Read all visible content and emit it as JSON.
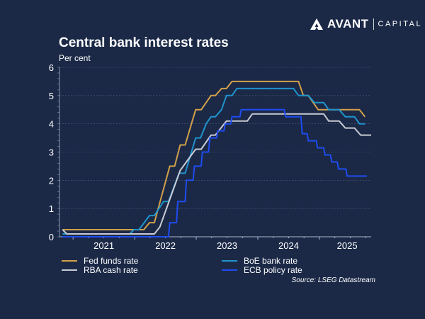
{
  "logo": {
    "brand": "AVANT",
    "sub": "CAPITAL"
  },
  "source": "Source: LSEG Datastream",
  "chart_data": {
    "type": "line",
    "title": "Central bank interest rates",
    "ylabel": "Per cent",
    "xlabel": "",
    "ylim": [
      0,
      6
    ],
    "xlim": [
      2020.78,
      2025.84
    ],
    "yticks": [
      "0",
      "1",
      "2",
      "3",
      "4",
      "5",
      "6"
    ],
    "xticks": [
      {
        "label": "2021",
        "at": 2021.5
      },
      {
        "label": "2022",
        "at": 2022.5
      },
      {
        "label": "2023",
        "at": 2023.5
      },
      {
        "label": "2024",
        "at": 2024.5
      },
      {
        "label": "2025",
        "at": 2025.45
      }
    ],
    "year_boundaries": [
      2021,
      2022,
      2023,
      2024,
      2025
    ],
    "grid": true,
    "legend_position": "bottom",
    "series": [
      {
        "name": "Fed funds rate",
        "color": "#d3a04a",
        "points": [
          [
            2020.83,
            0.25
          ],
          [
            2022.15,
            0.25
          ],
          [
            2022.24,
            0.5
          ],
          [
            2022.32,
            0.5
          ],
          [
            2022.57,
            2.5
          ],
          [
            2022.65,
            2.5
          ],
          [
            2022.74,
            3.25
          ],
          [
            2022.82,
            3.25
          ],
          [
            2022.99,
            4.5
          ],
          [
            2023.08,
            4.5
          ],
          [
            2023.24,
            5.0
          ],
          [
            2023.31,
            5.0
          ],
          [
            2023.41,
            5.25
          ],
          [
            2023.49,
            5.25
          ],
          [
            2023.58,
            5.5
          ],
          [
            2024.66,
            5.5
          ],
          [
            2024.74,
            5.0
          ],
          [
            2024.82,
            5.0
          ],
          [
            2024.98,
            4.5
          ],
          [
            2025.15,
            4.5
          ],
          [
            2025.65,
            4.5
          ],
          [
            2025.74,
            4.25
          ]
        ]
      },
      {
        "name": "BoE bank rate",
        "color": "#1f93cc",
        "points": [
          [
            2020.83,
            0.1
          ],
          [
            2021.92,
            0.1
          ],
          [
            2021.99,
            0.25
          ],
          [
            2022.07,
            0.25
          ],
          [
            2022.24,
            0.75
          ],
          [
            2022.32,
            0.75
          ],
          [
            2022.47,
            1.25
          ],
          [
            2022.55,
            1.25
          ],
          [
            2022.72,
            2.25
          ],
          [
            2022.82,
            2.25
          ],
          [
            2022.99,
            3.5
          ],
          [
            2023.07,
            3.5
          ],
          [
            2023.16,
            4.0
          ],
          [
            2023.24,
            4.25
          ],
          [
            2023.31,
            4.25
          ],
          [
            2023.41,
            4.5
          ],
          [
            2023.49,
            5.0
          ],
          [
            2023.58,
            5.0
          ],
          [
            2023.66,
            5.25
          ],
          [
            2024.58,
            5.25
          ],
          [
            2024.66,
            5.0
          ],
          [
            2024.82,
            5.0
          ],
          [
            2024.92,
            4.75
          ],
          [
            2025.07,
            4.75
          ],
          [
            2025.15,
            4.5
          ],
          [
            2025.32,
            4.5
          ],
          [
            2025.42,
            4.25
          ],
          [
            2025.57,
            4.25
          ],
          [
            2025.65,
            4.0
          ],
          [
            2025.74,
            4.0
          ]
        ]
      },
      {
        "name": "RBA cash rate",
        "color": "#c9cbd3",
        "points": [
          [
            2020.83,
            0.25
          ],
          [
            2020.9,
            0.1
          ],
          [
            2022.32,
            0.1
          ],
          [
            2022.41,
            0.35
          ],
          [
            2022.74,
            2.35
          ],
          [
            2022.99,
            3.1
          ],
          [
            2023.08,
            3.1
          ],
          [
            2023.24,
            3.6
          ],
          [
            2023.31,
            3.6
          ],
          [
            2023.49,
            4.1
          ],
          [
            2023.83,
            4.1
          ],
          [
            2023.91,
            4.35
          ],
          [
            2025.07,
            4.35
          ],
          [
            2025.15,
            4.1
          ],
          [
            2025.32,
            4.1
          ],
          [
            2025.42,
            3.85
          ],
          [
            2025.57,
            3.85
          ],
          [
            2025.67,
            3.6
          ],
          [
            2025.84,
            3.6
          ]
        ]
      },
      {
        "name": "ECB policy rate",
        "color": "#1f4cf0",
        "points": [
          [
            2020.83,
            0
          ],
          [
            2022.55,
            0
          ],
          [
            2022.57,
            0.5
          ],
          [
            2022.68,
            0.5
          ],
          [
            2022.7,
            1.25
          ],
          [
            2022.82,
            1.25
          ],
          [
            2022.84,
            2.0
          ],
          [
            2022.95,
            2.0
          ],
          [
            2022.97,
            2.5
          ],
          [
            2023.08,
            2.5
          ],
          [
            2023.1,
            3.0
          ],
          [
            2023.2,
            3.0
          ],
          [
            2023.22,
            3.5
          ],
          [
            2023.33,
            3.5
          ],
          [
            2023.35,
            3.75
          ],
          [
            2023.45,
            3.75
          ],
          [
            2023.47,
            4.0
          ],
          [
            2023.56,
            4.0
          ],
          [
            2023.58,
            4.25
          ],
          [
            2023.71,
            4.25
          ],
          [
            2023.73,
            4.5
          ],
          [
            2024.43,
            4.5
          ],
          [
            2024.45,
            4.25
          ],
          [
            2024.7,
            4.25
          ],
          [
            2024.72,
            3.65
          ],
          [
            2024.8,
            3.65
          ],
          [
            2024.82,
            3.4
          ],
          [
            2024.95,
            3.4
          ],
          [
            2024.97,
            3.15
          ],
          [
            2025.07,
            3.15
          ],
          [
            2025.09,
            2.9
          ],
          [
            2025.18,
            2.9
          ],
          [
            2025.2,
            2.65
          ],
          [
            2025.29,
            2.65
          ],
          [
            2025.31,
            2.4
          ],
          [
            2025.43,
            2.4
          ],
          [
            2025.45,
            2.15
          ],
          [
            2025.77,
            2.15
          ]
        ]
      }
    ]
  }
}
